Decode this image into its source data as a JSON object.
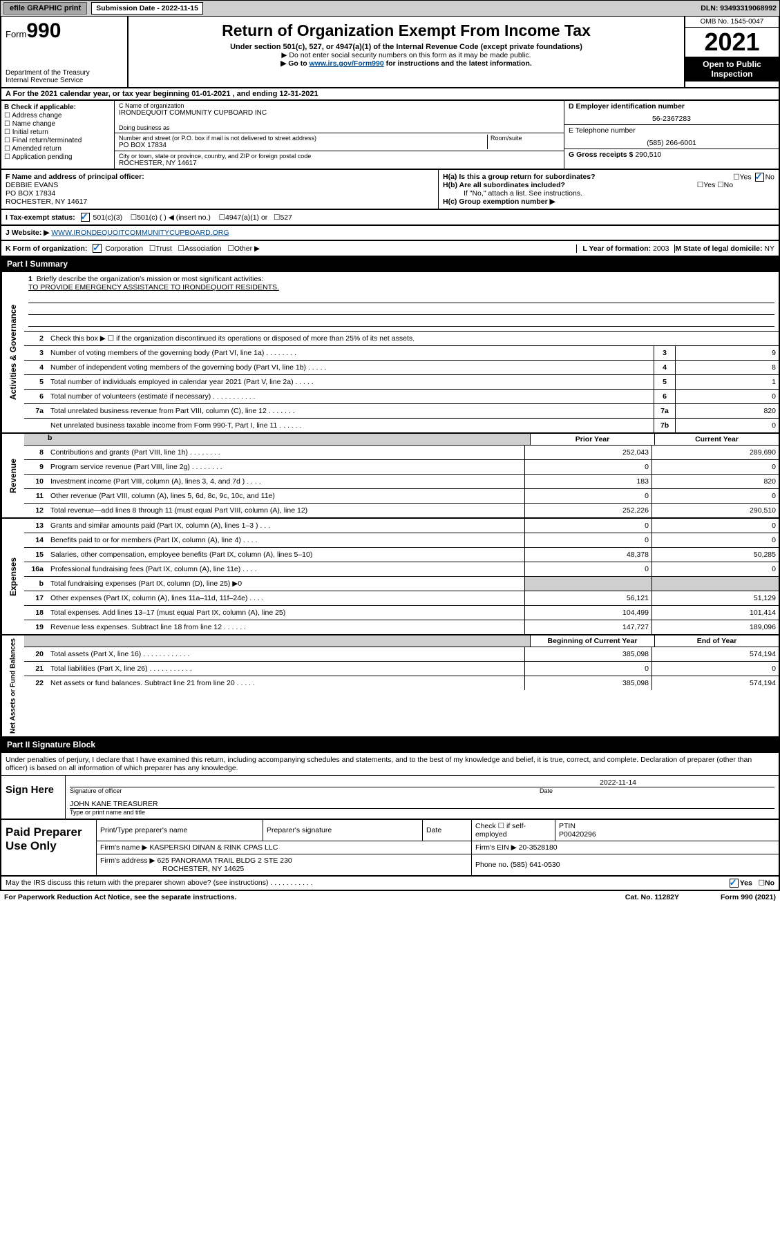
{
  "topbar": {
    "efile": "efile GRAPHIC print",
    "subdate_label": "Submission Date - 2022-11-15",
    "dln": "DLN: 93493319068992"
  },
  "header": {
    "form_prefix": "Form",
    "form_number": "990",
    "dept": "Department of the Treasury",
    "irs": "Internal Revenue Service",
    "title": "Return of Organization Exempt From Income Tax",
    "sub1": "Under section 501(c), 527, or 4947(a)(1) of the Internal Revenue Code (except private foundations)",
    "sub2": "▶ Do not enter social security numbers on this form as it may be made public.",
    "sub3_pre": "▶ Go to ",
    "sub3_link": "www.irs.gov/Form990",
    "sub3_post": " for instructions and the latest information.",
    "omb": "OMB No. 1545-0047",
    "taxyear": "2021",
    "open": "Open to Public Inspection"
  },
  "rowA": "A For the 2021 calendar year, or tax year beginning 01-01-2021   , and ending 12-31-2021",
  "colB": {
    "hdr": "B Check if applicable:",
    "items": [
      "Address change",
      "Name change",
      "Initial return",
      "Final return/terminated",
      "Amended return",
      "Application pending"
    ]
  },
  "colC": {
    "name_label": "C Name of organization",
    "name": "IRONDEQUOIT COMMUNITY CUPBOARD INC",
    "dba_label": "Doing business as",
    "addr_label": "Number and street (or P.O. box if mail is not delivered to street address)",
    "room_label": "Room/suite",
    "addr": "PO BOX 17834",
    "city_label": "City or town, state or province, country, and ZIP or foreign postal code",
    "city": "ROCHESTER, NY  14617"
  },
  "colDE": {
    "d_label": "D Employer identification number",
    "ein": "56-2367283",
    "e_label": "E Telephone number",
    "phone": "(585) 266-6001",
    "g_label": "G Gross receipts $",
    "gross": "290,510"
  },
  "rowF": {
    "label": "F Name and address of principal officer:",
    "name": "DEBBIE EVANS",
    "addr1": "PO BOX 17834",
    "addr2": "ROCHESTER, NY  14617"
  },
  "rowH": {
    "ha": "H(a)  Is this a group return for subordinates?",
    "ha_no": "No",
    "hb": "H(b)  Are all subordinates included?",
    "hb_note": "If \"No,\" attach a list. See instructions.",
    "hc": "H(c)  Group exemption number ▶"
  },
  "rowI": {
    "label": "I   Tax-exempt status:",
    "opt1": "501(c)(3)",
    "opt2": "501(c) (  ) ◀ (insert no.)",
    "opt3": "4947(a)(1) or",
    "opt4": "527"
  },
  "rowJ": {
    "label": "J   Website: ▶",
    "url": "WWW.IRONDEQUOITCOMMUNITYCUPBOARD.ORG"
  },
  "rowK": {
    "label": "K Form of organization:",
    "opts": [
      "Corporation",
      "Trust",
      "Association",
      "Other ▶"
    ],
    "l_label": "L Year of formation: ",
    "l_val": "2003",
    "m_label": "M State of legal domicile: ",
    "m_val": "NY"
  },
  "part1": {
    "hdr": "Part I      Summary",
    "side_ag": "Activities & Governance",
    "side_rev": "Revenue",
    "side_exp": "Expenses",
    "side_net": "Net Assets or Fund Balances",
    "l1_label": "Briefly describe the organization's mission or most significant activities:",
    "l1_text": "TO PROVIDE EMERGENCY ASSISTANCE TO IRONDEQUOIT RESIDENTS.",
    "l2": "Check this box ▶ ☐  if the organization discontinued its operations or disposed of more than 25% of its net assets.",
    "lines": [
      {
        "n": "3",
        "d": "Number of voting members of the governing body (Part VI, line 1a)   .    .    .    .    .    .    .    .",
        "b": "3",
        "v": "9"
      },
      {
        "n": "4",
        "d": "Number of independent voting members of the governing body (Part VI, line 1b)   .    .    .    .    .",
        "b": "4",
        "v": "8"
      },
      {
        "n": "5",
        "d": "Total number of individuals employed in calendar year 2021 (Part V, line 2a)   .    .    .    .    .",
        "b": "5",
        "v": "1"
      },
      {
        "n": "6",
        "d": "Total number of volunteers (estimate if necessary)   .    .    .    .    .    .    .    .    .    .    .",
        "b": "6",
        "v": "0"
      },
      {
        "n": "7a",
        "d": "Total unrelated business revenue from Part VIII, column (C), line 12   .    .    .    .    .    .    .",
        "b": "7a",
        "v": "820"
      },
      {
        "n": "",
        "d": "Net unrelated business taxable income from Form 990-T, Part I, line 11   .    .    .    .    .    .",
        "b": "7b",
        "v": "0"
      }
    ],
    "col_hdr_prior": "Prior Year",
    "col_hdr_curr": "Current Year",
    "rev": [
      {
        "n": "8",
        "d": "Contributions and grants (Part VIII, line 1h)   .    .    .    .    .    .    .    .",
        "pv": "252,043",
        "cv": "289,690"
      },
      {
        "n": "9",
        "d": "Program service revenue (Part VIII, line 2g)   .    .    .    .    .    .    .    .",
        "pv": "0",
        "cv": "0"
      },
      {
        "n": "10",
        "d": "Investment income (Part VIII, column (A), lines 3, 4, and 7d )   .    .    .    .",
        "pv": "183",
        "cv": "820"
      },
      {
        "n": "11",
        "d": "Other revenue (Part VIII, column (A), lines 5, 6d, 8c, 9c, 10c, and 11e)",
        "pv": "0",
        "cv": "0"
      },
      {
        "n": "12",
        "d": "Total revenue—add lines 8 through 11 (must equal Part VIII, column (A), line 12)",
        "pv": "252,226",
        "cv": "290,510"
      }
    ],
    "exp": [
      {
        "n": "13",
        "d": "Grants and similar amounts paid (Part IX, column (A), lines 1–3 )   .    .    .",
        "pv": "0",
        "cv": "0"
      },
      {
        "n": "14",
        "d": "Benefits paid to or for members (Part IX, column (A), line 4)   .    .    .    .",
        "pv": "0",
        "cv": "0"
      },
      {
        "n": "15",
        "d": "Salaries, other compensation, employee benefits (Part IX, column (A), lines 5–10)",
        "pv": "48,378",
        "cv": "50,285"
      },
      {
        "n": "16a",
        "d": "Professional fundraising fees (Part IX, column (A), line 11e)   .    .    .    .",
        "pv": "0",
        "cv": "0"
      },
      {
        "n": "b",
        "d": "Total fundraising expenses (Part IX, column (D), line 25) ▶0",
        "pv": "",
        "cv": "",
        "gray": true
      },
      {
        "n": "17",
        "d": "Other expenses (Part IX, column (A), lines 11a–11d, 11f–24e)   .    .    .    .",
        "pv": "56,121",
        "cv": "51,129"
      },
      {
        "n": "18",
        "d": "Total expenses. Add lines 13–17 (must equal Part IX, column (A), line 25)",
        "pv": "104,499",
        "cv": "101,414"
      },
      {
        "n": "19",
        "d": "Revenue less expenses. Subtract line 18 from line 12   .    .    .    .    .    .",
        "pv": "147,727",
        "cv": "189,096"
      }
    ],
    "net_hdr_prior": "Beginning of Current Year",
    "net_hdr_curr": "End of Year",
    "net": [
      {
        "n": "20",
        "d": "Total assets (Part X, line 16)   .    .    .    .    .    .    .    .    .    .    .    .",
        "pv": "385,098",
        "cv": "574,194"
      },
      {
        "n": "21",
        "d": "Total liabilities (Part X, line 26)   .    .    .    .    .    .    .    .    .    .    .",
        "pv": "0",
        "cv": "0"
      },
      {
        "n": "22",
        "d": "Net assets or fund balances. Subtract line 21 from line 20   .    .    .    .    .",
        "pv": "385,098",
        "cv": "574,194"
      }
    ]
  },
  "part2": {
    "hdr": "Part II     Signature Block",
    "decl": "Under penalties of perjury, I declare that I have examined this return, including accompanying schedules and statements, and to the best of my knowledge and belief, it is true, correct, and complete. Declaration of preparer (other than officer) is based on all information of which preparer has any knowledge.",
    "sign_here": "Sign Here",
    "sig_officer": "Signature of officer",
    "sig_date": "Date",
    "sig_date_val": "2022-11-14",
    "sig_name": "JOHN KANE  TREASURER",
    "sig_name_label": "Type or print name and title",
    "paid": "Paid Preparer Use Only",
    "p_name_label": "Print/Type preparer's name",
    "p_sig_label": "Preparer's signature",
    "p_date_label": "Date",
    "p_check": "Check ☐ if self-employed",
    "p_ptin_label": "PTIN",
    "p_ptin": "P00420296",
    "firm_name_label": "Firm's name    ▶",
    "firm_name": "KASPERSKI DINAN & RINK CPAS LLC",
    "firm_ein_label": "Firm's EIN ▶",
    "firm_ein": "20-3528180",
    "firm_addr_label": "Firm's address ▶",
    "firm_addr": "625 PANORAMA TRAIL BLDG 2 STE 230",
    "firm_city": "ROCHESTER, NY  14625",
    "firm_phone_label": "Phone no.",
    "firm_phone": "(585) 641-0530",
    "may_irs": "May the IRS discuss this return with the preparer shown above? (see instructions)   .    .    .    .    .    .    .    .    .    .    .",
    "yes": "Yes",
    "no": "No"
  },
  "footer": {
    "pra": "For Paperwork Reduction Act Notice, see the separate instructions.",
    "cat": "Cat. No. 11282Y",
    "form": "Form 990 (2021)"
  }
}
